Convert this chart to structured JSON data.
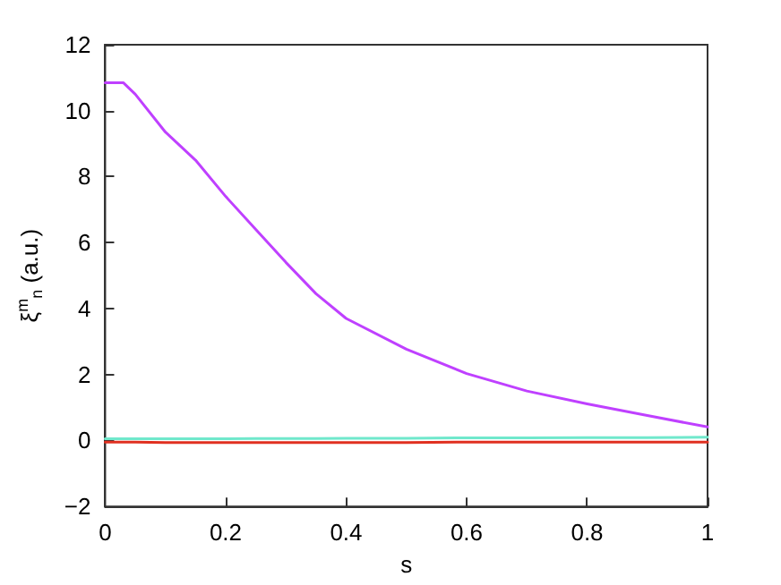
{
  "chart_data": {
    "type": "line",
    "xlabel": "s",
    "ylabel": "ξ$^{m}$$_{n}$ (a.u.)",
    "xlim": [
      0,
      1
    ],
    "xticks": [
      0,
      0.2,
      0.4,
      0.6,
      0.8,
      1
    ],
    "ylim": [
      -2,
      12
    ],
    "yticks": [
      -2,
      0,
      2,
      4,
      6,
      8,
      10,
      12
    ],
    "grid": false,
    "marker": "none",
    "line_style": "solid",
    "x": [
      0,
      0.03,
      0.05,
      0.1,
      0.15,
      0.2,
      0.25,
      0.3,
      0.35,
      0.4,
      0.5,
      0.6,
      0.7,
      0.8,
      0.9,
      1
    ],
    "series": [
      {
        "color": "#bf40ff",
        "values": [
          10.85,
          10.85,
          10.5,
          9.35,
          8.5,
          7.4,
          6.4,
          5.4,
          4.45,
          3.7,
          2.77,
          2.03,
          1.5,
          1.11,
          0.76,
          0.41
        ]
      },
      {
        "color": "#e03020",
        "values": [
          -0.05,
          -0.05,
          -0.05,
          -0.06,
          -0.06,
          -0.06,
          -0.06,
          -0.06,
          -0.06,
          -0.06,
          -0.06,
          -0.05,
          -0.05,
          -0.05,
          -0.05,
          -0.05
        ]
      },
      {
        "color": "#70e8cc",
        "values": [
          0.05,
          0.05,
          0.05,
          0.05,
          0.05,
          0.05,
          0.06,
          0.06,
          0.06,
          0.07,
          0.07,
          0.08,
          0.08,
          0.09,
          0.09,
          0.1
        ]
      }
    ]
  }
}
